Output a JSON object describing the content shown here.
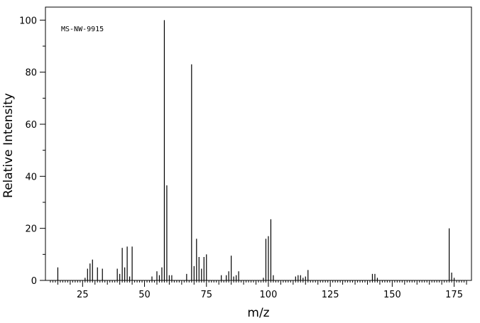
{
  "chart_data": {
    "type": "bar",
    "annotation": "MS-NW-9915",
    "xlabel": "m/z",
    "ylabel": "Relative Intensity",
    "xlim": [
      10,
      182
    ],
    "ylim": [
      0,
      105
    ],
    "x_ticks": [
      25,
      50,
      75,
      100,
      125,
      150,
      175
    ],
    "y_ticks": [
      0,
      20,
      40,
      60,
      80,
      100
    ],
    "grid": false,
    "legend": "none",
    "series": [
      {
        "x": [
          15,
          26,
          27,
          28,
          29,
          31,
          33,
          39,
          40,
          41,
          42,
          43,
          44,
          45,
          53,
          55,
          56,
          57,
          58,
          59,
          60,
          61,
          67,
          69,
          70,
          71,
          72,
          73,
          74,
          75,
          81,
          83,
          84,
          85,
          86,
          87,
          88,
          98,
          99,
          100,
          101,
          102,
          111,
          112,
          113,
          114,
          115,
          116,
          142,
          143,
          144,
          173,
          174,
          175
        ],
        "values": [
          5,
          1,
          4.5,
          6.5,
          8,
          5,
          4.5,
          4.5,
          2.5,
          12.5,
          5,
          13,
          1.5,
          13,
          1.5,
          3.5,
          2,
          5,
          100,
          36.5,
          2,
          2,
          2.5,
          83,
          5.5,
          16,
          9,
          4.5,
          9,
          10,
          2,
          2,
          3.5,
          9.5,
          1.5,
          2,
          3.5,
          1,
          16,
          17,
          23.5,
          2,
          1.5,
          2,
          2,
          1,
          1.5,
          4,
          2.5,
          2.5,
          1,
          20,
          3,
          1
        ]
      }
    ]
  }
}
